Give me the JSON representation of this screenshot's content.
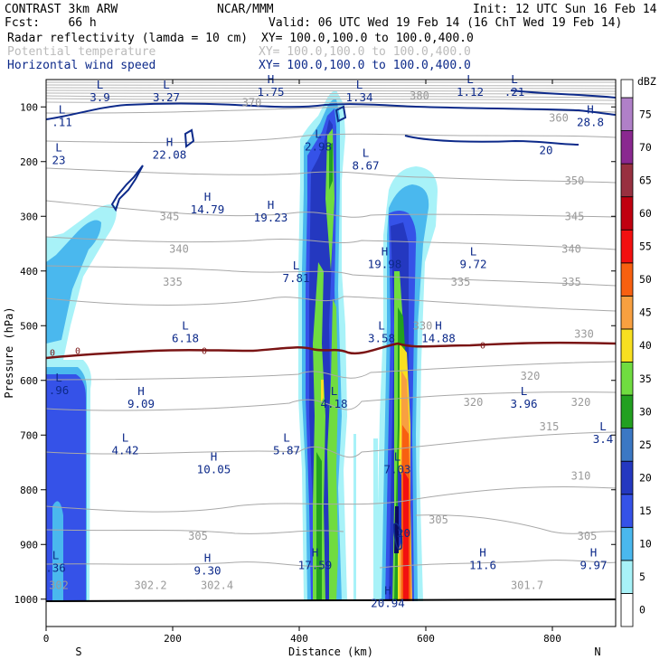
{
  "header": {
    "left1": "CONTRAST  3km ARW",
    "center1": "NCAR/MMM",
    "init": "Init: 12 UTC Sun 16 Feb 14",
    "fcst": "Fcst:    66 h",
    "valid": "Valid: 06 UTC Wed 19 Feb 14 (16 ChT Wed 19 Feb 14)",
    "field1": "Radar reflectivity (lamda = 10 cm)",
    "field1_xy": "XY= 100.0,100.0 to 100.0,400.0",
    "field2": "Potential temperature",
    "field2_xy": "XY= 100.0,100.0 to 100.0,400.0",
    "field3": "Horizontal wind speed",
    "field3_xy": "XY= 100.0,100.0 to 100.0,400.0"
  },
  "colors": {
    "header_text": "#000000",
    "field1": "#000000",
    "field2": "#bbbbbb",
    "field3": "#0d2a8a",
    "wind_contour": "#0d2a8a",
    "theta_contour": "#a8a8a8",
    "zero_line": "#7a1414"
  },
  "chart_data": {
    "type": "heatmap",
    "xlabel": "Distance (km)",
    "ylabel": "Pressure (hPa)",
    "xlim": [
      0,
      900
    ],
    "ylim": [
      1050,
      50
    ],
    "xticks": [
      "0",
      "200",
      "400",
      "600",
      "800"
    ],
    "yticks": [
      "100",
      "200",
      "300",
      "400",
      "500",
      "600",
      "700",
      "800",
      "900",
      "1000"
    ],
    "x_end_labels": {
      "left": "S",
      "right": "N"
    },
    "colorbar": {
      "title": "dBZ",
      "levels": [
        "0",
        "5",
        "10",
        "15",
        "20",
        "25",
        "30",
        "35",
        "40",
        "45",
        "50",
        "55",
        "60",
        "65",
        "70",
        "75"
      ],
      "colors": [
        "#ffffff",
        "#a8f2f8",
        "#4ab8ee",
        "#3552e8",
        "#2438c0",
        "#3b78c4",
        "#22a020",
        "#70dc40",
        "#f8e020",
        "#f8a040",
        "#f86010",
        "#f21010",
        "#c00010",
        "#983040",
        "#8a2890",
        "#b080c8"
      ]
    },
    "reflectivity_cells": [
      {
        "x": [
          10,
          60
        ],
        "p": [
          1000,
          580
        ],
        "max_dbz": 15
      },
      {
        "x": [
          0,
          120
        ],
        "p": [
          560,
          230
        ],
        "max_dbz": 10
      },
      {
        "x": [
          405,
          475
        ],
        "p": [
          1000,
          90
        ],
        "max_dbz": 35
      },
      {
        "x": [
          520,
          600
        ],
        "p": [
          1000,
          240
        ],
        "max_dbz": 55
      }
    ],
    "theta_contours": [
      {
        "value": "302",
        "x": 20,
        "p": 975
      },
      {
        "value": "302.2",
        "x": 165,
        "p": 975
      },
      {
        "value": "302.4",
        "x": 270,
        "p": 975
      },
      {
        "value": "301.7",
        "x": 760,
        "p": 975
      },
      {
        "value": "305",
        "x": 240,
        "p": 885
      },
      {
        "value": "305",
        "x": 620,
        "p": 855
      },
      {
        "value": "305",
        "x": 855,
        "p": 885
      },
      {
        "value": "310",
        "x": 845,
        "p": 775
      },
      {
        "value": "315",
        "x": 795,
        "p": 685
      },
      {
        "value": "320",
        "x": 675,
        "p": 640
      },
      {
        "value": "320",
        "x": 765,
        "p": 592
      },
      {
        "value": "320",
        "x": 845,
        "p": 640
      },
      {
        "value": "330",
        "x": 595,
        "p": 500
      },
      {
        "value": "330",
        "x": 850,
        "p": 515
      },
      {
        "value": "335",
        "x": 200,
        "p": 420
      },
      {
        "value": "335",
        "x": 655,
        "p": 420
      },
      {
        "value": "335",
        "x": 830,
        "p": 420
      },
      {
        "value": "340",
        "x": 210,
        "p": 360
      },
      {
        "value": "340",
        "x": 830,
        "p": 360
      },
      {
        "value": "345",
        "x": 195,
        "p": 300
      },
      {
        "value": "345",
        "x": 835,
        "p": 300
      },
      {
        "value": "350",
        "x": 835,
        "p": 235
      },
      {
        "value": "360",
        "x": 810,
        "p": 120
      },
      {
        "value": "370",
        "x": 325,
        "p": 92
      },
      {
        "value": "380",
        "x": 590,
        "p": 80
      }
    ],
    "freezing_level": {
      "label": "0",
      "p": 545
    },
    "wind_contour_labels": [
      {
        "value": "20",
        "x": 790,
        "p": 180
      },
      {
        "value": "20",
        "x": 565,
        "p": 880
      }
    ],
    "extrema": [
      {
        "type": "L",
        "value": "3.9",
        "x": 85,
        "p": 70
      },
      {
        "type": "L",
        "value": "3.27",
        "x": 190,
        "p": 70
      },
      {
        "type": "H",
        "value": "1.75",
        "x": 355,
        "p": 60
      },
      {
        "type": "L",
        "value": "1.34",
        "x": 495,
        "p": 70
      },
      {
        "type": "L",
        "value": ".11",
        "x": 25,
        "p": 115
      },
      {
        "type": "L",
        "value": "1.12",
        "x": 670,
        "p": 60
      },
      {
        "type": "L",
        "value": ".21",
        "x": 740,
        "p": 60
      },
      {
        "type": "H",
        "value": "28.8",
        "x": 860,
        "p": 115
      },
      {
        "type": "L",
        "value": "2.98",
        "x": 430,
        "p": 160
      },
      {
        "type": "L",
        "value": "23",
        "x": 20,
        "p": 185
      },
      {
        "type": "H",
        "value": "22.08",
        "x": 195,
        "p": 175
      },
      {
        "type": "L",
        "value": "8.67",
        "x": 505,
        "p": 195
      },
      {
        "type": "H",
        "value": "14.79",
        "x": 255,
        "p": 275
      },
      {
        "type": "H",
        "value": "19.23",
        "x": 355,
        "p": 290
      },
      {
        "type": "H",
        "value": "19.98",
        "x": 535,
        "p": 375
      },
      {
        "type": "L",
        "value": "9.72",
        "x": 675,
        "p": 375
      },
      {
        "type": "L",
        "value": "7.81",
        "x": 395,
        "p": 400
      },
      {
        "type": "L",
        "value": "6.18",
        "x": 220,
        "p": 510
      },
      {
        "type": "L",
        "value": "3.58",
        "x": 530,
        "p": 510
      },
      {
        "type": "H",
        "value": "14.88",
        "x": 620,
        "p": 510
      },
      {
        "type": "L",
        "value": ".96",
        "x": 20,
        "p": 605
      },
      {
        "type": "H",
        "value": "9.09",
        "x": 150,
        "p": 630
      },
      {
        "type": "L",
        "value": "4.18",
        "x": 455,
        "p": 630
      },
      {
        "type": "L",
        "value": "3.96",
        "x": 755,
        "p": 630
      },
      {
        "type": "L",
        "value": "3.4",
        "x": 880,
        "p": 695
      },
      {
        "type": "L",
        "value": "4.42",
        "x": 125,
        "p": 715
      },
      {
        "type": "L",
        "value": "5.87",
        "x": 380,
        "p": 715
      },
      {
        "type": "H",
        "value": "10.05",
        "x": 265,
        "p": 750
      },
      {
        "type": "L",
        "value": "7.03",
        "x": 555,
        "p": 750
      },
      {
        "type": "L",
        "value": ".36",
        "x": 15,
        "p": 930
      },
      {
        "type": "H",
        "value": "9.30",
        "x": 255,
        "p": 935
      },
      {
        "type": "H",
        "value": "17.59",
        "x": 425,
        "p": 925
      },
      {
        "type": "H",
        "value": "11.6",
        "x": 690,
        "p": 925
      },
      {
        "type": "H",
        "value": "9.97",
        "x": 865,
        "p": 925
      },
      {
        "type": "H",
        "value": "20.94",
        "x": 540,
        "p": 995
      }
    ]
  }
}
